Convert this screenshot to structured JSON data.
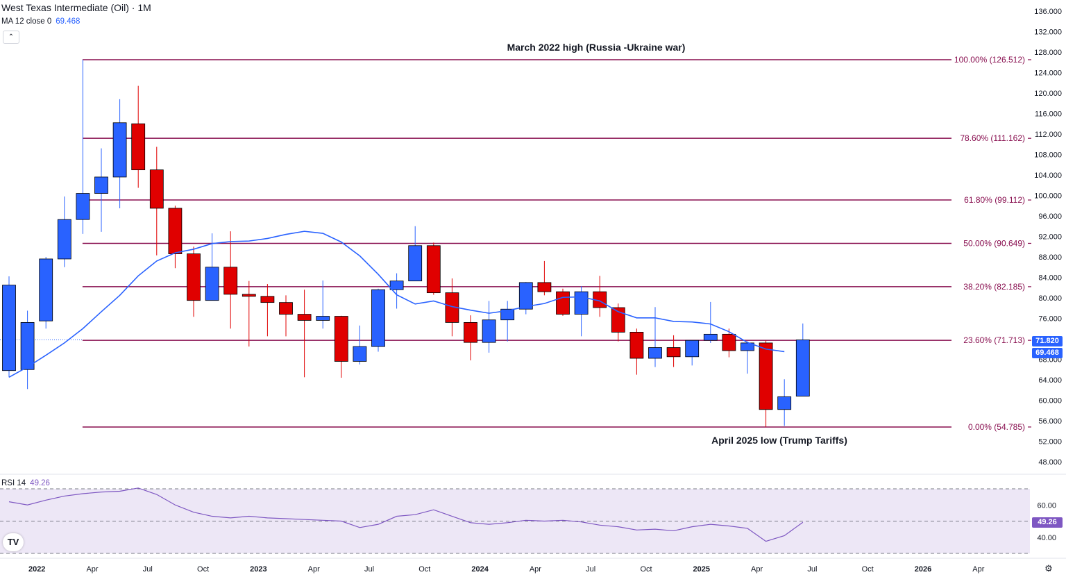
{
  "header": {
    "title": "West Texas Intermediate (Oil) · 1M",
    "ma_label": "MA 12 close 0",
    "ma_value": "69.468",
    "rsi_label": "RSI 14",
    "rsi_value": "49.26"
  },
  "colors": {
    "up": "#2962ff",
    "down": "#e00000",
    "ma": "#2962ff",
    "fib": "#880e4f",
    "rsi_line": "#7e57c2",
    "rsi_band": "#ede7f6"
  },
  "icons": {
    "collapse": "chevron-up-icon",
    "logo": "tradingview-logo",
    "settings": "gear-icon"
  },
  "tags": {
    "last_price": "71.820",
    "ma_value": "69.468",
    "rsi_value": "49.26"
  },
  "annotations": {
    "top": "March 2022 high (Russia -Ukraine war)",
    "bottom": "April 2025 low (Trump Tariffs)"
  },
  "chart_data": [
    {
      "type": "candlestick",
      "title": "West Texas Intermediate (Oil) · 1M",
      "y_axis_ticks": [
        "136.000",
        "132.000",
        "128.000",
        "124.000",
        "120.000",
        "116.000",
        "112.000",
        "108.000",
        "104.000",
        "100.000",
        "96.000",
        "92.000",
        "88.000",
        "84.000",
        "80.000",
        "76.000",
        "72.000",
        "68.000",
        "64.000",
        "60.000",
        "56.000",
        "52.000",
        "48.000"
      ],
      "ylim": [
        46,
        137
      ],
      "x_axis_ticks": [
        "2022",
        "Apr",
        "Jul",
        "Oct",
        "2023",
        "Apr",
        "Jul",
        "Oct",
        "2024",
        "Apr",
        "Jul",
        "Oct",
        "2025",
        "Apr",
        "Jul",
        "Oct",
        "2026",
        "Apr"
      ],
      "candles": [
        {
          "o": 65.8,
          "h": 84.2,
          "l": 64.5,
          "c": 82.5
        },
        {
          "o": 66.0,
          "h": 77.5,
          "l": 62.2,
          "c": 75.2
        },
        {
          "o": 75.5,
          "h": 88.0,
          "l": 74.0,
          "c": 87.6
        },
        {
          "o": 87.6,
          "h": 99.8,
          "l": 86.0,
          "c": 95.3
        },
        {
          "o": 95.3,
          "h": 126.5,
          "l": 92.5,
          "c": 100.4
        },
        {
          "o": 100.4,
          "h": 109.2,
          "l": 92.9,
          "c": 103.6
        },
        {
          "o": 103.6,
          "h": 118.8,
          "l": 97.5,
          "c": 114.2
        },
        {
          "o": 114.0,
          "h": 121.4,
          "l": 101.5,
          "c": 105.0
        },
        {
          "o": 105.0,
          "h": 109.5,
          "l": 88.3,
          "c": 97.5
        },
        {
          "o": 97.5,
          "h": 98.0,
          "l": 85.8,
          "c": 88.6
        },
        {
          "o": 88.6,
          "h": 90.0,
          "l": 76.3,
          "c": 79.5
        },
        {
          "o": 79.5,
          "h": 92.6,
          "l": 79.5,
          "c": 86.0
        },
        {
          "o": 86.0,
          "h": 93.0,
          "l": 74.0,
          "c": 80.7
        },
        {
          "o": 80.7,
          "h": 83.3,
          "l": 70.5,
          "c": 80.3
        },
        {
          "o": 80.3,
          "h": 82.7,
          "l": 72.5,
          "c": 79.1
        },
        {
          "o": 79.1,
          "h": 80.5,
          "l": 72.5,
          "c": 76.8
        },
        {
          "o": 76.8,
          "h": 81.6,
          "l": 64.5,
          "c": 75.6
        },
        {
          "o": 75.6,
          "h": 83.4,
          "l": 74.0,
          "c": 76.4
        },
        {
          "o": 76.4,
          "h": 76.5,
          "l": 64.4,
          "c": 67.6
        },
        {
          "o": 67.6,
          "h": 74.6,
          "l": 67.0,
          "c": 70.5
        },
        {
          "o": 70.5,
          "h": 81.8,
          "l": 69.5,
          "c": 81.6
        },
        {
          "o": 81.6,
          "h": 84.8,
          "l": 77.9,
          "c": 83.3
        },
        {
          "o": 83.3,
          "h": 94.0,
          "l": 83.3,
          "c": 90.2
        },
        {
          "o": 90.2,
          "h": 90.8,
          "l": 80.6,
          "c": 81.0
        },
        {
          "o": 81.0,
          "h": 83.8,
          "l": 72.5,
          "c": 75.2
        },
        {
          "o": 75.2,
          "h": 76.6,
          "l": 67.8,
          "c": 71.3
        },
        {
          "o": 71.3,
          "h": 79.4,
          "l": 69.3,
          "c": 75.7
        },
        {
          "o": 75.7,
          "h": 79.4,
          "l": 71.5,
          "c": 77.8
        },
        {
          "o": 77.8,
          "h": 83.1,
          "l": 76.8,
          "c": 83.0
        },
        {
          "o": 83.0,
          "h": 87.2,
          "l": 80.5,
          "c": 81.2
        },
        {
          "o": 81.2,
          "h": 81.8,
          "l": 76.5,
          "c": 76.8
        },
        {
          "o": 76.8,
          "h": 82.3,
          "l": 72.5,
          "c": 81.2
        },
        {
          "o": 81.2,
          "h": 84.3,
          "l": 76.3,
          "c": 78.1
        },
        {
          "o": 78.1,
          "h": 78.9,
          "l": 71.5,
          "c": 73.3
        },
        {
          "o": 73.3,
          "h": 74.0,
          "l": 65.0,
          "c": 68.2
        },
        {
          "o": 68.2,
          "h": 78.2,
          "l": 66.5,
          "c": 70.3
        },
        {
          "o": 70.3,
          "h": 72.7,
          "l": 66.5,
          "c": 68.5
        },
        {
          "o": 68.5,
          "h": 71.6,
          "l": 66.8,
          "c": 71.7
        },
        {
          "o": 71.7,
          "h": 79.2,
          "l": 71.2,
          "c": 72.9
        },
        {
          "o": 72.9,
          "h": 74.0,
          "l": 68.4,
          "c": 69.7
        },
        {
          "o": 69.7,
          "h": 71.5,
          "l": 65.2,
          "c": 71.2
        },
        {
          "o": 71.2,
          "h": 71.7,
          "l": 54.8,
          "c": 58.2
        },
        {
          "o": 58.2,
          "h": 64.1,
          "l": 55.0,
          "c": 60.7
        },
        {
          "o": 60.8,
          "h": 75.0,
          "l": 60.8,
          "c": 71.8
        }
      ],
      "moving_average": {
        "name": "MA 12 close 0",
        "values": [
          64.5,
          66.5,
          68.8,
          71.2,
          74.0,
          77.3,
          80.5,
          84.3,
          87.2,
          88.8,
          89.5,
          90.6,
          91.0,
          91.1,
          91.6,
          92.4,
          93.0,
          92.6,
          90.9,
          88.2,
          84.6,
          80.6,
          78.8,
          79.4,
          78.3,
          77.6,
          77.0,
          77.5,
          78.3,
          78.9,
          80.1,
          80.2,
          79.4,
          77.3,
          76.1,
          76.1,
          75.4,
          75.3,
          74.9,
          73.4,
          71.3,
          70.0,
          69.5
        ]
      },
      "fibonacci": [
        {
          "label": "100.00% (126.512)",
          "price": 126.512
        },
        {
          "label": "78.60% (111.162)",
          "price": 111.162
        },
        {
          "label": "61.80% (99.112)",
          "price": 99.112
        },
        {
          "label": "50.00% (90.649)",
          "price": 90.649
        },
        {
          "label": "38.20% (82.185)",
          "price": 82.185
        },
        {
          "label": "23.60% (71.713)",
          "price": 71.713
        },
        {
          "label": "0.00% (54.785)",
          "price": 54.785
        }
      ],
      "last_price": 71.82,
      "ma_last": 69.468
    },
    {
      "type": "line",
      "title": "RSI 14",
      "y_axis_ticks": [
        "60.00",
        "40.00"
      ],
      "band": [
        30,
        70
      ],
      "midline": 50,
      "ylim": [
        30,
        70
      ],
      "series": [
        {
          "name": "RSI 14",
          "values": [
            62.0,
            60.0,
            63.0,
            65.5,
            67.0,
            68.0,
            68.5,
            70.5,
            66.5,
            60.0,
            55.5,
            53.0,
            52.0,
            53.0,
            52.0,
            51.5,
            51.0,
            50.5,
            50.0,
            46.0,
            48.0,
            53.0,
            54.0,
            57.0,
            53.0,
            49.0,
            48.0,
            49.0,
            50.5,
            50.0,
            50.5,
            49.5,
            47.5,
            46.5,
            44.5,
            45.0,
            44.0,
            46.5,
            48.0,
            47.0,
            45.5,
            37.5,
            41.0,
            49.26
          ]
        }
      ],
      "last_value": 49.26
    }
  ]
}
